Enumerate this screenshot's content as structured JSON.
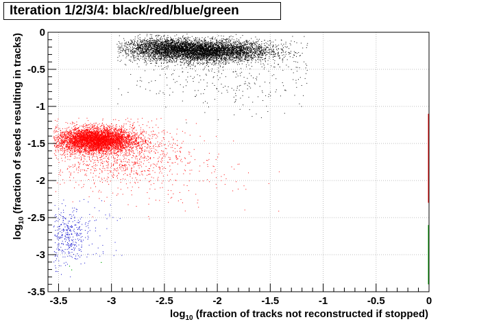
{
  "chart_data": {
    "type": "scatter",
    "title": "Iteration 1/2/3/4: black/red/blue/green",
    "xlabel": {
      "prefix": "log",
      "sub": "10",
      "text": " (fraction of tracks not reconstructed if stopped)"
    },
    "ylabel": {
      "prefix": "log",
      "sub": "10",
      "text": " (fraction of seeds resulting in tracks)"
    },
    "xlim": [
      -3.6,
      0
    ],
    "ylim": [
      -3.5,
      0
    ],
    "x_ticks": [
      -3.5,
      -3,
      -2.5,
      -2,
      -1.5,
      -1,
      -0.5,
      0
    ],
    "x_tick_labels": [
      "-3.5",
      "-3",
      "-2.5",
      "-2",
      "-1.5",
      "-1",
      "-0.5",
      "0"
    ],
    "y_ticks": [
      0,
      -0.5,
      -1,
      -1.5,
      -2,
      -2.5,
      -3,
      -3.5
    ],
    "y_tick_labels": [
      "0",
      "-0.5",
      "-1",
      "-1.5",
      "-2",
      "-2.5",
      "-3",
      "-3.5"
    ],
    "grid": true,
    "series": [
      {
        "color": "#000000",
        "iteration": 1,
        "clusters": [
          {
            "cx": -2.15,
            "cy": -0.25,
            "sx": 0.32,
            "sy": 0.07,
            "n": 5200
          },
          {
            "cx": -2.55,
            "cy": -0.18,
            "sx": 0.18,
            "sy": 0.06,
            "n": 900
          },
          {
            "cx": -1.85,
            "cy": -0.45,
            "sx": 0.5,
            "sy": 0.3,
            "n": 500
          }
        ],
        "range": {
          "x": [
            -2.95,
            -1.15
          ],
          "y": [
            -1.4,
            -0.02
          ]
        }
      },
      {
        "color": "#ff0000",
        "iteration": 2,
        "clusters": [
          {
            "cx": -3.15,
            "cy": -1.45,
            "sx": 0.18,
            "sy": 0.08,
            "n": 5000
          },
          {
            "cx": -3.0,
            "cy": -1.62,
            "sx": 0.35,
            "sy": 0.22,
            "n": 1200
          },
          {
            "cx": -2.5,
            "cy": -1.9,
            "sx": 0.45,
            "sy": 0.3,
            "n": 150
          }
        ],
        "range": {
          "x": [
            -3.55,
            -1.4
          ],
          "y": [
            -2.55,
            -1.15
          ]
        },
        "edge_line": {
          "x": 0,
          "y": [
            -2.3,
            -1.1
          ]
        }
      },
      {
        "color": "#0000cc",
        "iteration": 3,
        "clusters": [
          {
            "cx": -3.42,
            "cy": -2.75,
            "sx": 0.08,
            "sy": 0.2,
            "n": 320
          },
          {
            "cx": -3.2,
            "cy": -2.7,
            "sx": 0.2,
            "sy": 0.25,
            "n": 80
          }
        ],
        "range": {
          "x": [
            -3.55,
            -2.9
          ],
          "y": [
            -3.3,
            -2.25
          ]
        }
      },
      {
        "color": "#00aa00",
        "iteration": 4,
        "edge_line": {
          "x": 0,
          "y": [
            -3.4,
            -2.6
          ]
        },
        "points": [
          [
            -3.4,
            -3.15
          ],
          [
            -3.38,
            -3.2
          ],
          [
            -3.1,
            -3.1
          ]
        ]
      }
    ]
  }
}
